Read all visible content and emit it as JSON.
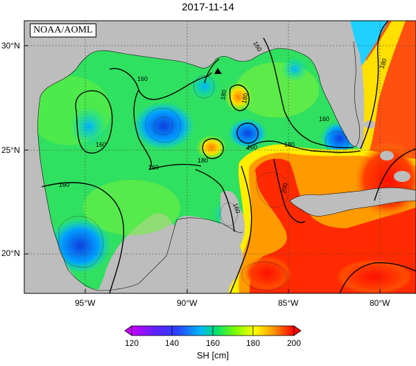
{
  "title": "2017-11-14",
  "source": "NOAA/AOML",
  "colors": {
    "land": "#bdbdbd",
    "frame": "#000000",
    "grid": "#555555"
  },
  "axes": {
    "lon_ticks": [
      "95°W",
      "90°W",
      "85°W",
      "80°W"
    ],
    "lat_ticks": [
      "20°N",
      "25°N",
      "30°N"
    ]
  },
  "contour_labels": [
    "160",
    "160",
    "160",
    "160",
    "160",
    "160",
    "160",
    "160",
    "180",
    "180",
    "180",
    "180",
    "180",
    "200"
  ],
  "markers": [
    {
      "name": "station-triangle",
      "lon": -88.1,
      "lat": 28.5
    }
  ],
  "colorbar": {
    "label": "SH [cm]",
    "ticks": [
      "120",
      "140",
      "160",
      "180",
      "200"
    ],
    "range": [
      120,
      200
    ],
    "colors": [
      "#c800ff",
      "#2a2aff",
      "#00b4ff",
      "#00e070",
      "#7fff00",
      "#ffff00",
      "#ff9000",
      "#ff0000"
    ]
  }
}
